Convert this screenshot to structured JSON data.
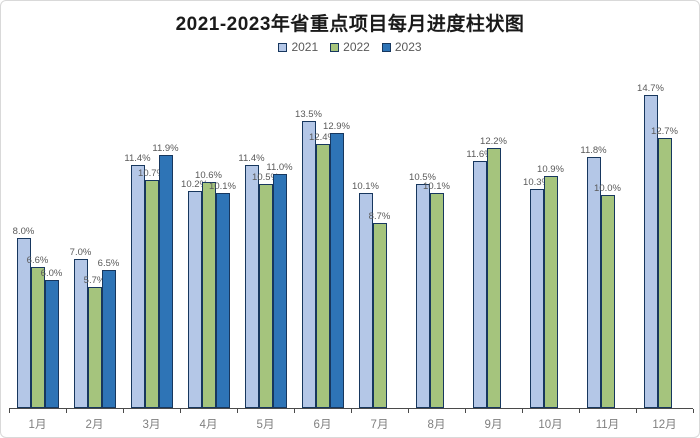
{
  "chart_data": {
    "type": "bar",
    "title": "2021-2023年省重点项目每月进度柱状图",
    "categories": [
      "1月",
      "2月",
      "3月",
      "4月",
      "5月",
      "6月",
      "7月",
      "8月",
      "9月",
      "10月",
      "11月",
      "12月"
    ],
    "series": [
      {
        "name": "2021",
        "color": "#B4C7E7",
        "values": [
          8.0,
          7.0,
          11.4,
          10.2,
          11.4,
          13.5,
          10.1,
          10.5,
          11.6,
          10.3,
          11.8,
          14.7
        ]
      },
      {
        "name": "2022",
        "color": "#A5C47D",
        "values": [
          6.6,
          5.7,
          10.7,
          10.6,
          10.5,
          12.4,
          8.7,
          10.1,
          12.2,
          10.9,
          10.0,
          12.7
        ]
      },
      {
        "name": "2023",
        "color": "#2E74B6",
        "values": [
          6.0,
          6.5,
          11.9,
          10.1,
          11.0,
          12.9,
          null,
          null,
          null,
          null,
          null,
          null
        ]
      }
    ],
    "value_suffix": "%",
    "label_decimals": 1,
    "ylim": [
      0,
      16.3
    ],
    "grid": false,
    "y_axis_shown": false,
    "legend_position": "top-center",
    "data_labels_shown": true,
    "colors": {
      "bar_border": "#17375E",
      "data_label": "#595959",
      "axis_line": "#4a4a4a",
      "category_label": "#7F7F7F",
      "title": "#1a1a1a",
      "background": "#ffffff"
    }
  }
}
